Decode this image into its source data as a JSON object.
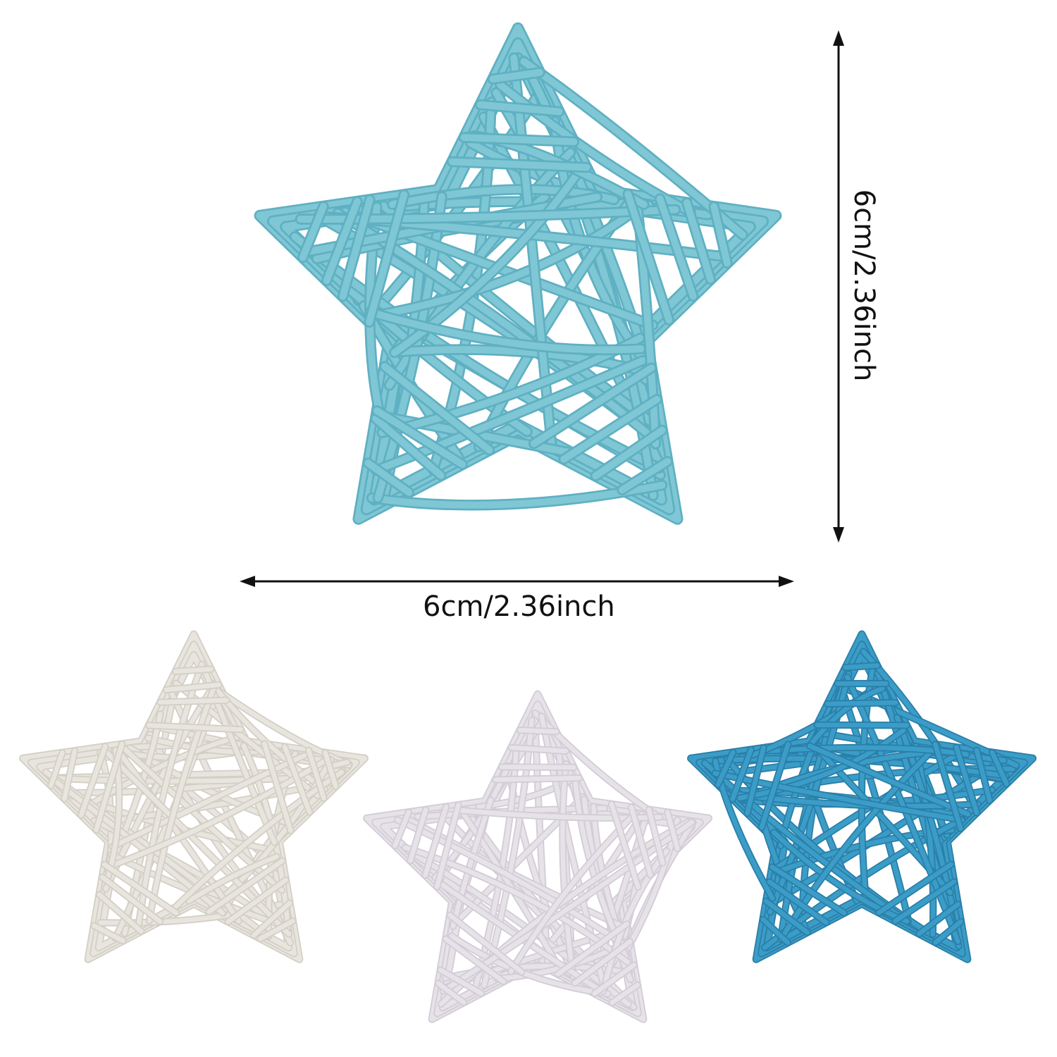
{
  "dimensions": {
    "width_label": "6cm/2.36inch",
    "height_label": "6cm/2.36inch"
  },
  "stars": [
    {
      "name": "main-light-blue-star",
      "color": "#7fc7d5",
      "shade": "#5fb0c2"
    },
    {
      "name": "cream-star",
      "color": "#e8e5de",
      "shade": "#d3cfc6"
    },
    {
      "name": "light-lavender-star",
      "color": "#e6e2e8",
      "shade": "#d2ccd6"
    },
    {
      "name": "blue-star",
      "color": "#3b9dc7",
      "shade": "#2a7fa8"
    }
  ],
  "arrow_color": "#111111"
}
